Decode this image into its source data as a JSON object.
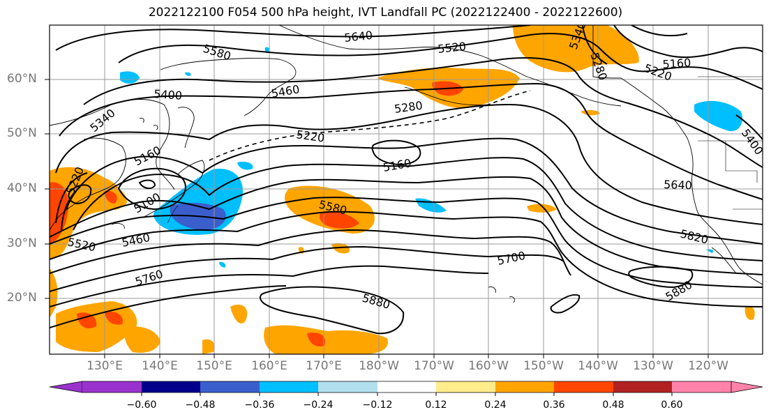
{
  "title": "2022122100 F054 500 hPa height, IVT Landfall PC (2022122400 - 2022122600)",
  "lat_labels": [
    "60°N",
    "50°N",
    "40°N",
    "30°N",
    "20°N"
  ],
  "lon_labels": [
    "130°E",
    "140°E",
    "150°E",
    "160°E",
    "170°E",
    "180°W",
    "170°W",
    "160°W",
    "150°W",
    "140°W",
    "130°W",
    "120°W"
  ],
  "contour_labels": [
    "5640",
    "5580",
    "5520",
    "5400",
    "5460",
    "5340",
    "5280",
    "5220",
    "5160",
    "5160",
    "5100",
    "5220",
    "5520",
    "5460",
    "5580",
    "5760",
    "5700",
    "5880",
    "5820",
    "5640",
    "5880",
    "5160",
    "5220",
    "5280",
    "5340",
    "5400"
  ],
  "colorbar": {
    "ticks": [
      "−0.60",
      "−0.48",
      "−0.36",
      "−0.24",
      "−0.12",
      "0.12",
      "0.24",
      "0.36",
      "0.48",
      "0.60"
    ],
    "colors": [
      "#9a32cd",
      "#00008b",
      "#3a5fcd",
      "#00bfff",
      "#b2dfee",
      "#ffffff",
      "#ffec8b",
      "#ffa500",
      "#ff4500",
      "#b22222",
      "#ff82ab"
    ]
  }
}
